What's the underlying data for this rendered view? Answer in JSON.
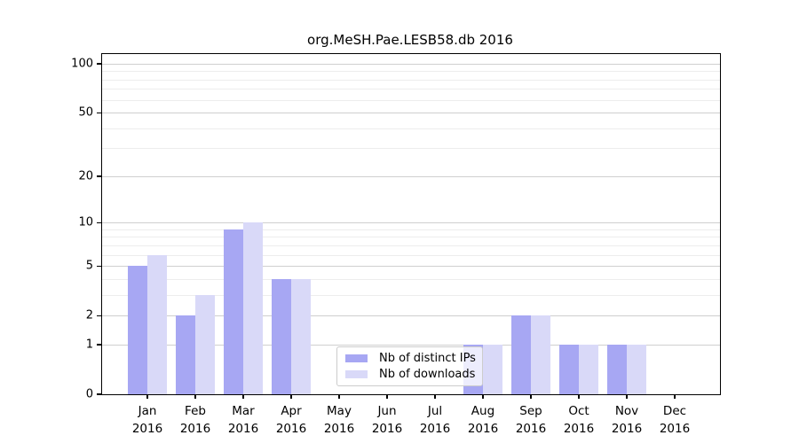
{
  "title": "org.MeSH.Pae.LESB58.db 2016",
  "chart_data": {
    "type": "bar",
    "title": "org.MeSH.Pae.LESB58.db 2016",
    "categories": [
      "Jan 2016",
      "Feb 2016",
      "Mar 2016",
      "Apr 2016",
      "May 2016",
      "Jun 2016",
      "Jul 2016",
      "Aug 2016",
      "Sep 2016",
      "Oct 2016",
      "Nov 2016",
      "Dec 2016"
    ],
    "series": [
      {
        "name": "Nb of distinct IPs",
        "color": "#a7a7f3",
        "values": [
          5,
          2,
          9,
          4,
          0,
          0,
          0,
          1,
          2,
          1,
          1,
          0
        ]
      },
      {
        "name": "Nb of downloads",
        "color": "#d9d9f8",
        "values": [
          6,
          3,
          10,
          4,
          0,
          0,
          0,
          1,
          2,
          1,
          1,
          0
        ]
      }
    ],
    "xlabel": "",
    "ylabel": "",
    "yscale": "log1p",
    "ylim": [
      0,
      100
    ],
    "yticks": [
      0,
      1,
      2,
      5,
      10,
      20,
      50,
      100
    ],
    "minor_yticks": [
      3,
      4,
      6,
      7,
      8,
      9,
      30,
      40,
      60,
      70,
      80,
      90
    ],
    "grid": "horizontal",
    "legend_position": "bottom-center-inside"
  },
  "colors": {
    "major_grid": "#cfcfcf",
    "minor_grid": "#ededed",
    "axis": "#000000",
    "background": "#ffffff"
  }
}
